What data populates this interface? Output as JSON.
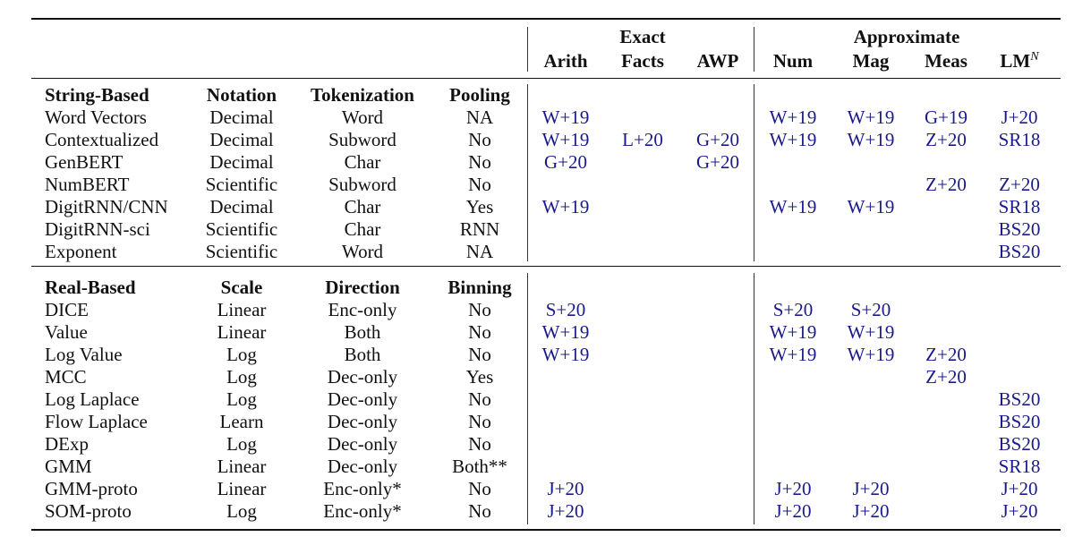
{
  "header": {
    "exact": "Exact",
    "approximate": "Approximate",
    "tasks": [
      "Arith",
      "Facts",
      "AWP",
      "Num",
      "Mag",
      "Meas",
      "LM"
    ],
    "lm_superscript": "N"
  },
  "string_section": {
    "headers": [
      "String-Based",
      "Notation",
      "Tokenization",
      "Pooling"
    ],
    "rows": [
      {
        "name": "Word Vectors",
        "c1": "Decimal",
        "c2": "Word",
        "c3": "NA",
        "arith": "W+19",
        "facts": "",
        "awp": "",
        "num": "W+19",
        "mag": "W+19",
        "meas": "G+19",
        "lm": "J+20"
      },
      {
        "name": "Contextualized",
        "c1": "Decimal",
        "c2": "Subword",
        "c3": "No",
        "arith": "W+19",
        "facts": "L+20",
        "awp": "G+20",
        "num": "W+19",
        "mag": "W+19",
        "meas": "Z+20",
        "lm": "SR18"
      },
      {
        "name": "GenBERT",
        "c1": "Decimal",
        "c2": "Char",
        "c3": "No",
        "arith": "G+20",
        "facts": "",
        "awp": "G+20",
        "num": "",
        "mag": "",
        "meas": "",
        "lm": ""
      },
      {
        "name": "NumBERT",
        "c1": "Scientific",
        "c2": "Subword",
        "c3": "No",
        "arith": "",
        "facts": "",
        "awp": "",
        "num": "",
        "mag": "",
        "meas": "Z+20",
        "lm": "Z+20"
      },
      {
        "name": "DigitRNN/CNN",
        "c1": "Decimal",
        "c2": "Char",
        "c3": "Yes",
        "arith": "W+19",
        "facts": "",
        "awp": "",
        "num": "W+19",
        "mag": "W+19",
        "meas": "",
        "lm": "SR18"
      },
      {
        "name": "DigitRNN-sci",
        "c1": "Scientific",
        "c2": "Char",
        "c3": "RNN",
        "arith": "",
        "facts": "",
        "awp": "",
        "num": "",
        "mag": "",
        "meas": "",
        "lm": "BS20"
      },
      {
        "name": "Exponent",
        "c1": "Scientific",
        "c2": "Word",
        "c3": "NA",
        "arith": "",
        "facts": "",
        "awp": "",
        "num": "",
        "mag": "",
        "meas": "",
        "lm": "BS20"
      }
    ]
  },
  "real_section": {
    "headers": [
      "Real-Based",
      "Scale",
      "Direction",
      "Binning"
    ],
    "rows": [
      {
        "name": "DICE",
        "c1": "Linear",
        "c2": "Enc-only",
        "c3": "No",
        "arith": "S+20",
        "facts": "",
        "awp": "",
        "num": "S+20",
        "mag": "S+20",
        "meas": "",
        "lm": ""
      },
      {
        "name": "Value",
        "c1": "Linear",
        "c2": "Both",
        "c3": "No",
        "arith": "W+19",
        "facts": "",
        "awp": "",
        "num": "W+19",
        "mag": "W+19",
        "meas": "",
        "lm": ""
      },
      {
        "name": "Log Value",
        "c1": "Log",
        "c2": "Both",
        "c3": "No",
        "arith": "W+19",
        "facts": "",
        "awp": "",
        "num": "W+19",
        "mag": "W+19",
        "meas": "Z+20",
        "lm": ""
      },
      {
        "name": "MCC",
        "c1": "Log",
        "c2": "Dec-only",
        "c3": "Yes",
        "arith": "",
        "facts": "",
        "awp": "",
        "num": "",
        "mag": "",
        "meas": "Z+20",
        "lm": ""
      },
      {
        "name": "Log Laplace",
        "c1": "Log",
        "c2": "Dec-only",
        "c3": "No",
        "arith": "",
        "facts": "",
        "awp": "",
        "num": "",
        "mag": "",
        "meas": "",
        "lm": "BS20"
      },
      {
        "name": "Flow Laplace",
        "c1": "Learn",
        "c2": "Dec-only",
        "c3": "No",
        "arith": "",
        "facts": "",
        "awp": "",
        "num": "",
        "mag": "",
        "meas": "",
        "lm": "BS20"
      },
      {
        "name": "DExp",
        "c1": "Log",
        "c2": "Dec-only",
        "c3": "No",
        "arith": "",
        "facts": "",
        "awp": "",
        "num": "",
        "mag": "",
        "meas": "",
        "lm": "BS20"
      },
      {
        "name": "GMM",
        "c1": "Linear",
        "c2": "Dec-only",
        "c3": "Both**",
        "arith": "",
        "facts": "",
        "awp": "",
        "num": "",
        "mag": "",
        "meas": "",
        "lm": "SR18"
      },
      {
        "name": "GMM-proto",
        "c1": "Linear",
        "c2": "Enc-only*",
        "c3": "No",
        "arith": "J+20",
        "facts": "",
        "awp": "",
        "num": "J+20",
        "mag": "J+20",
        "meas": "",
        "lm": "J+20"
      },
      {
        "name": "SOM-proto",
        "c1": "Log",
        "c2": "Enc-only*",
        "c3": "No",
        "arith": "J+20",
        "facts": "",
        "awp": "",
        "num": "J+20",
        "mag": "J+20",
        "meas": "",
        "lm": "J+20"
      }
    ]
  },
  "colors": {
    "citation": "#1a1a8c",
    "text": "#111111"
  }
}
